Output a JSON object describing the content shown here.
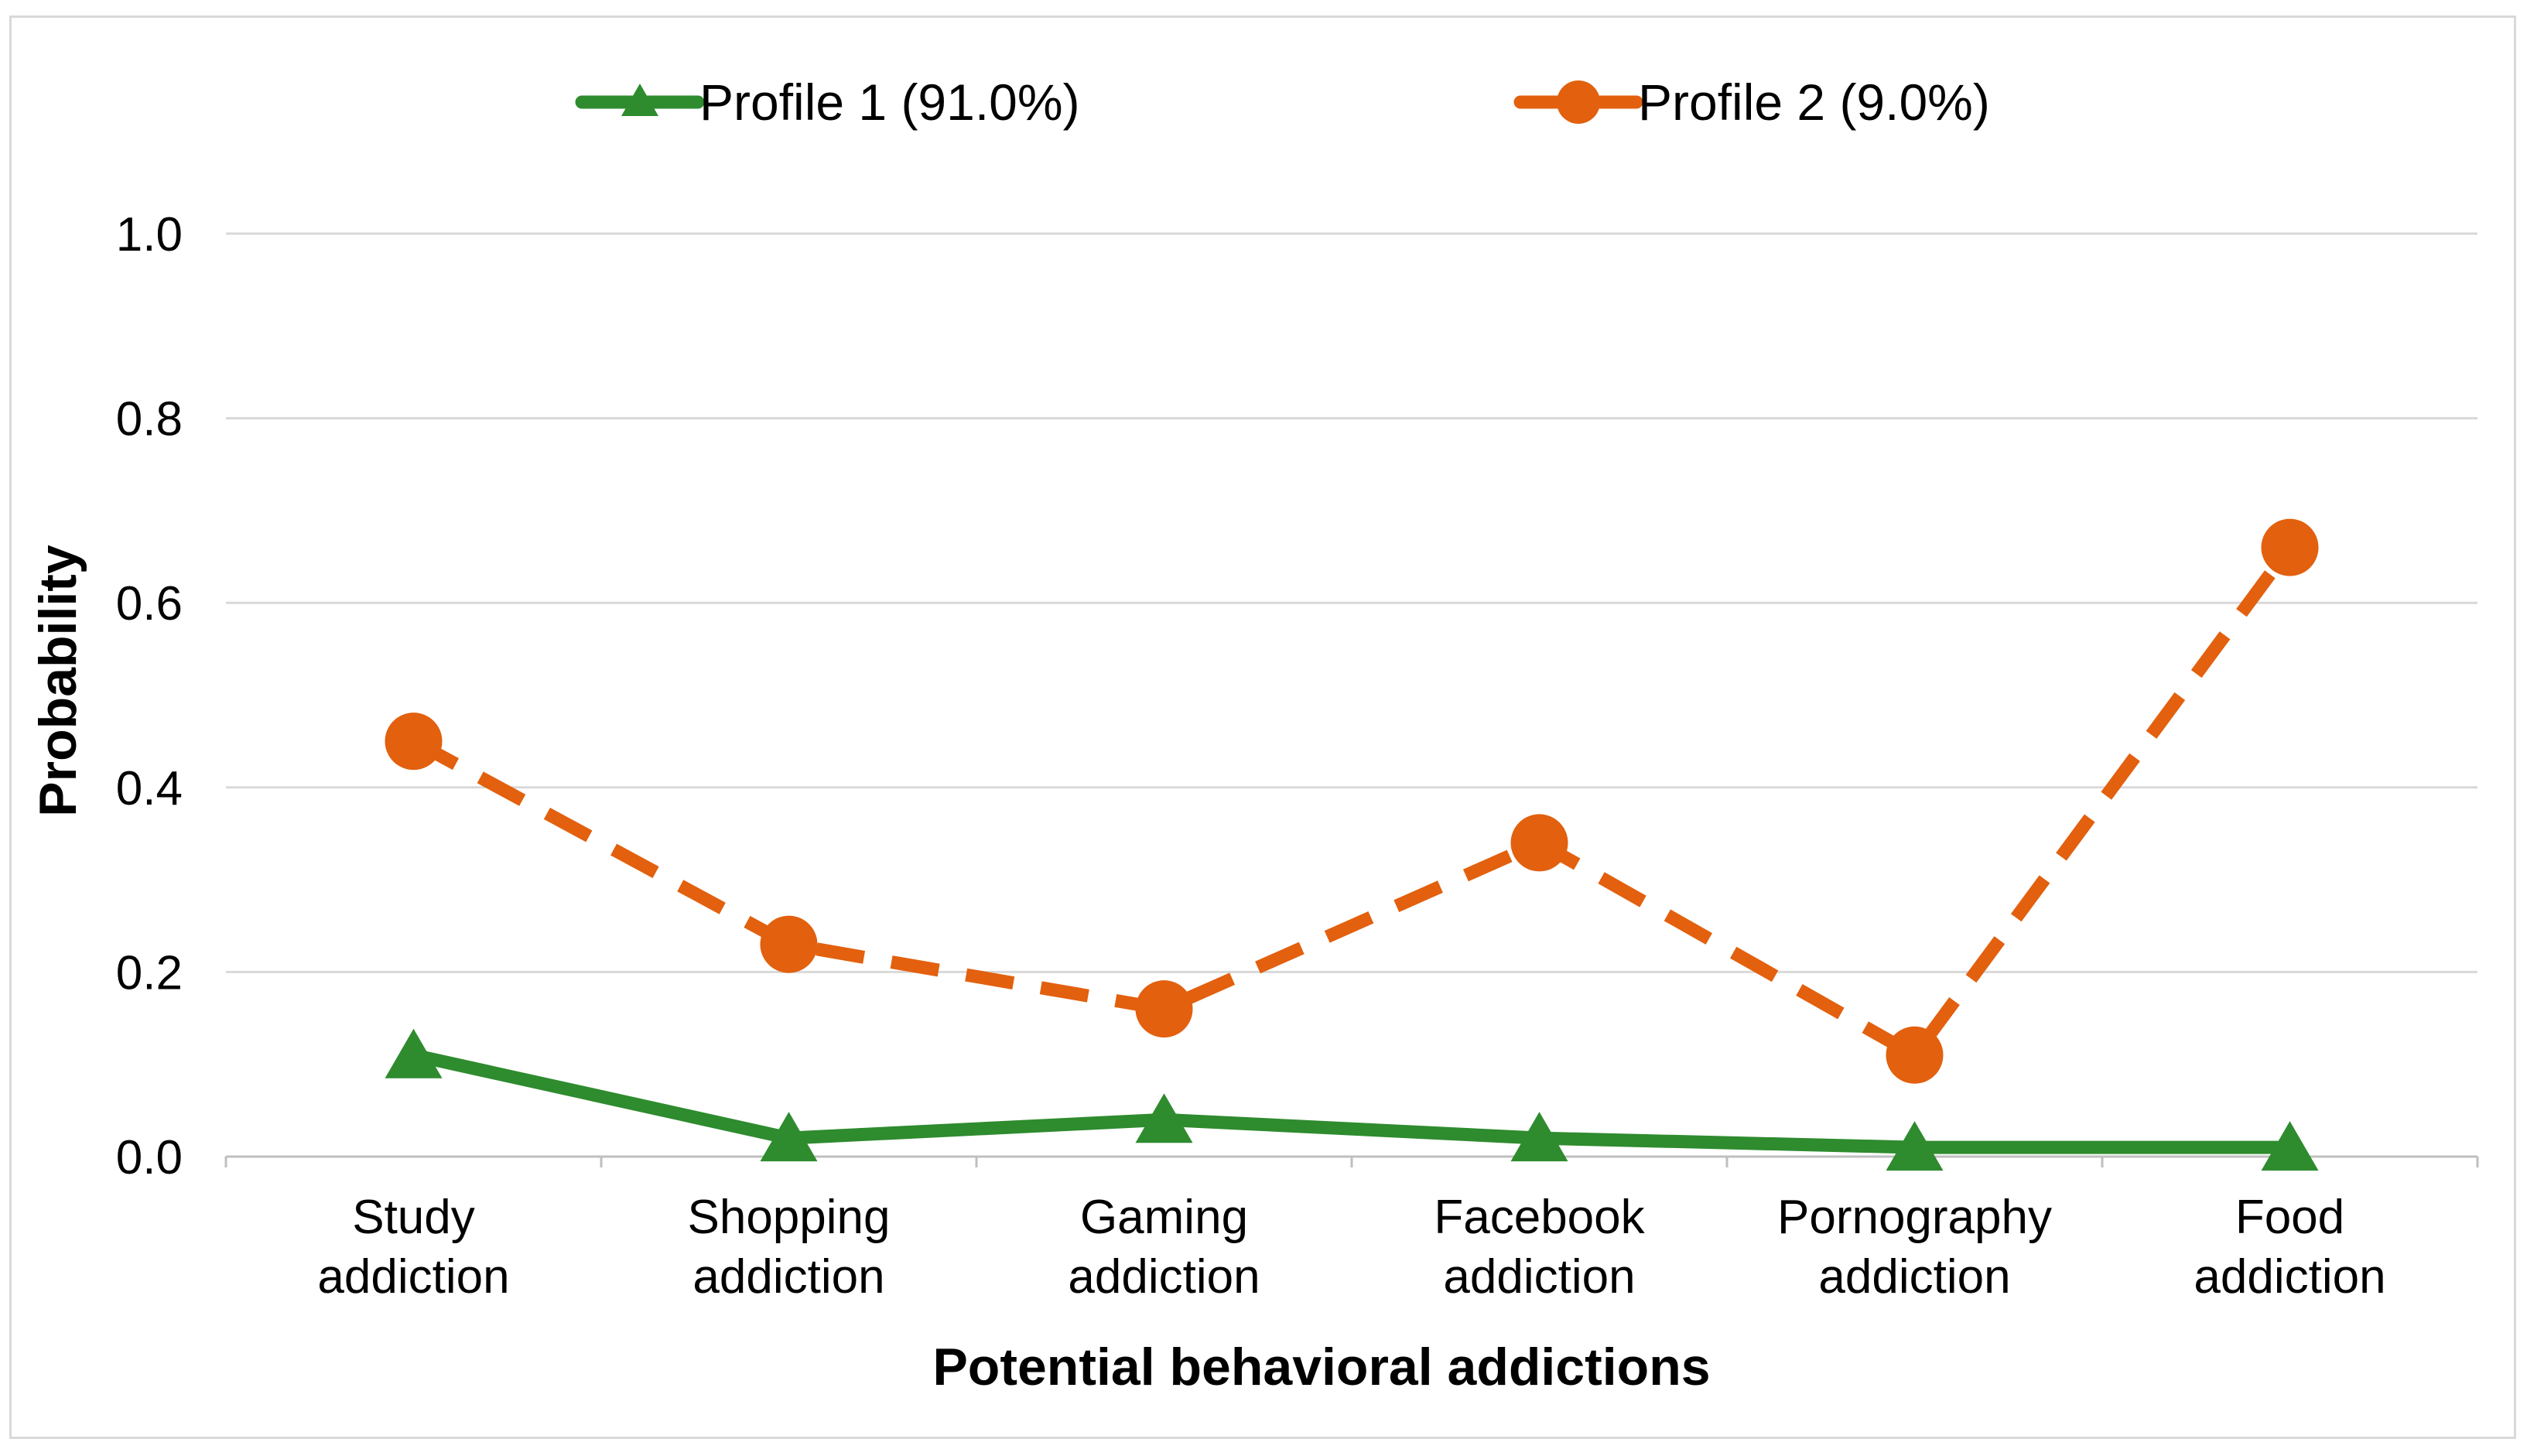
{
  "chart_data": {
    "type": "line",
    "title": "",
    "xlabel": "Potential behavioral addictions",
    "ylabel": "Probability",
    "ylim": [
      0,
      1.0
    ],
    "yticks": [
      "0.0",
      "0.2",
      "0.4",
      "0.6",
      "0.8",
      "1.0"
    ],
    "categories": [
      [
        "Study",
        "addiction"
      ],
      [
        "Shopping",
        "addiction"
      ],
      [
        "Gaming",
        "addiction"
      ],
      [
        "Facebook",
        "addiction"
      ],
      [
        "Pornography",
        "addiction"
      ],
      [
        "Food",
        "addiction"
      ]
    ],
    "grid": true,
    "legend_position": "top",
    "series": [
      {
        "name": "Profile 1 (91.0%)",
        "color": "#2e8b2e",
        "marker": "triangle",
        "dash": "solid",
        "values": [
          0.11,
          0.02,
          0.04,
          0.02,
          0.01,
          0.01
        ]
      },
      {
        "name": "Profile 2 (9.0%)",
        "color": "#e2600e",
        "marker": "circle",
        "dash": "dashed",
        "values": [
          0.45,
          0.23,
          0.16,
          0.34,
          0.11,
          0.66
        ]
      }
    ]
  }
}
